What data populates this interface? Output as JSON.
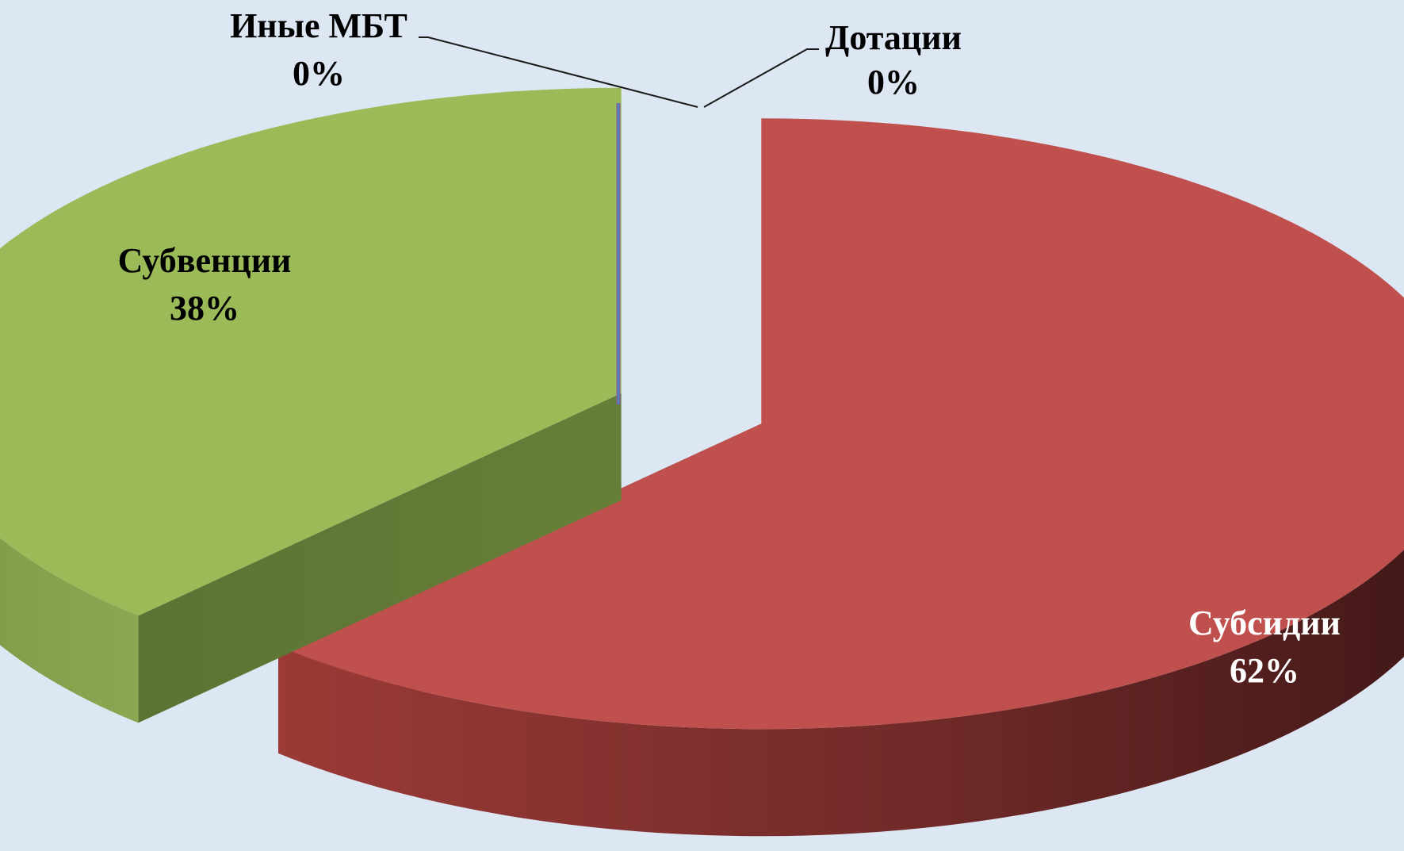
{
  "chart_data": {
    "type": "pie",
    "style": "3d-exploded",
    "categories": [
      "Субсидии",
      "Субвенции",
      "Иные МБТ",
      "Дотации"
    ],
    "values": [
      62,
      38,
      0,
      0
    ],
    "value_labels": [
      "62%",
      "38%",
      "0%",
      "0%"
    ],
    "colors": {
      "Субсидии": "#c0504d",
      "Субвенции": "#9bbb59",
      "Иные МБТ": "#8064a2",
      "Дотации": "#4f81bd"
    },
    "background": "#dde7f3",
    "legend": "none"
  }
}
